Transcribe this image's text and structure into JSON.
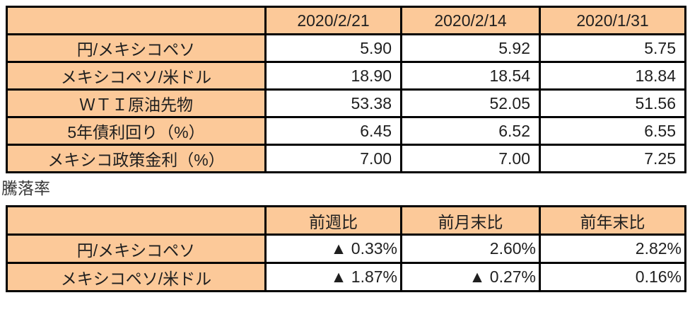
{
  "colors": {
    "cell_fill": "#FCC999",
    "border": "#000000",
    "text": "#1F1F1F"
  },
  "rates_table": {
    "headers": [
      "",
      "2020/2/21",
      "2020/2/14",
      "2020/1/31"
    ],
    "rows": [
      {
        "label": "円/メキシコペソ",
        "values": [
          "5.90",
          "5.92",
          "5.75"
        ]
      },
      {
        "label": "メキシコペソ/米ドル",
        "values": [
          "18.90",
          "18.54",
          "18.84"
        ]
      },
      {
        "label": "ＷＴＩ原油先物",
        "values": [
          "53.38",
          "52.05",
          "51.56"
        ]
      },
      {
        "label": "5年債利回り（%）",
        "values": [
          "6.45",
          "6.52",
          "6.55"
        ]
      },
      {
        "label": "メキシコ政策金利（%）",
        "values": [
          "7.00",
          "7.00",
          "7.25"
        ]
      }
    ]
  },
  "section_label": "騰落率",
  "change_table": {
    "headers": [
      "",
      "前週比",
      "前月末比",
      "前年末比"
    ],
    "rows": [
      {
        "label": "円/メキシコペソ",
        "values": [
          "▲ 0.33%",
          "2.60%",
          "2.82%"
        ]
      },
      {
        "label": "メキシコペソ/米ドル",
        "values": [
          "▲ 1.87%",
          "▲ 0.27%",
          "0.16%"
        ]
      }
    ]
  }
}
